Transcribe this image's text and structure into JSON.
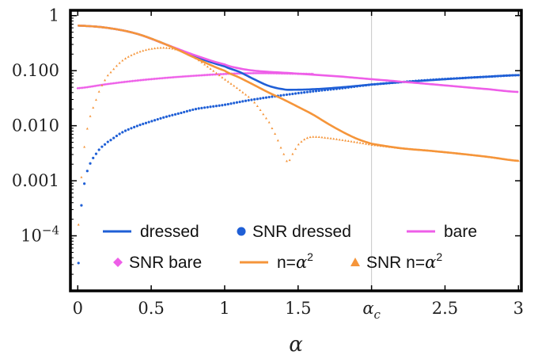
{
  "chart_data": {
    "type": "line",
    "xlabel": "α",
    "ylabel": "",
    "xlim": [
      -0.05,
      3.02
    ],
    "ylim": [
      1e-05,
      1.25
    ],
    "y_scale": "log",
    "x_ticks": [
      {
        "value": 0,
        "label": "0"
      },
      {
        "value": 0.5,
        "label": "0.5"
      },
      {
        "value": 1,
        "label": "1"
      },
      {
        "value": 1.5,
        "label": "1.5"
      },
      {
        "value": 2,
        "label": "α_c",
        "base": "α",
        "sub": "c"
      },
      {
        "value": 2.5,
        "label": "2.5"
      },
      {
        "value": 3,
        "label": "3"
      }
    ],
    "y_ticks": [
      {
        "value": 1,
        "label": "1"
      },
      {
        "value": 0.1,
        "label": "0.100"
      },
      {
        "value": 0.01,
        "label": "0.010"
      },
      {
        "value": 0.001,
        "label": "0.001"
      },
      {
        "value": 0.0001,
        "label": "10⁻⁴",
        "base": "10",
        "sup": "−4"
      }
    ],
    "reference_lines": [
      {
        "x": 2,
        "color": "#c8c8c8"
      }
    ],
    "legend_position": "bottom",
    "series": [
      {
        "name": "dressed",
        "style": "line",
        "color": "#1f5fd6",
        "x": [
          0,
          0.2,
          0.4,
          0.6,
          0.8,
          1.0,
          1.1,
          1.2,
          1.3,
          1.4,
          1.45,
          1.6,
          1.8,
          2.0,
          2.2,
          2.5,
          2.8,
          3.0
        ],
        "y": [
          0.66,
          0.6,
          0.47,
          0.3,
          0.18,
          0.12,
          0.095,
          0.07,
          0.053,
          0.046,
          0.045,
          0.046,
          0.05,
          0.056,
          0.062,
          0.07,
          0.078,
          0.083
        ]
      },
      {
        "name": "SNR dressed",
        "style": "points",
        "marker": "circle",
        "color": "#1f5fd6",
        "x": [
          0.005,
          0.02,
          0.035,
          0.05,
          0.075,
          0.1,
          0.15,
          0.2,
          0.3,
          0.4,
          0.5,
          0.6,
          0.7,
          0.8,
          0.9,
          1.0,
          1.1,
          1.2,
          1.3,
          1.4,
          1.5,
          1.6,
          1.7,
          1.8,
          1.9,
          2.0,
          2.2,
          2.4,
          2.6,
          2.8,
          3.0
        ],
        "y": [
          3.2e-05,
          0.00025,
          0.00055,
          0.0011,
          0.0018,
          0.0025,
          0.0038,
          0.005,
          0.0075,
          0.0098,
          0.012,
          0.0145,
          0.017,
          0.02,
          0.022,
          0.024,
          0.027,
          0.03,
          0.033,
          0.036,
          0.039,
          0.042,
          0.045,
          0.048,
          0.052,
          0.056,
          0.062,
          0.068,
          0.073,
          0.078,
          0.083
        ]
      },
      {
        "name": "bare",
        "style": "line",
        "color": "#ee5ee8",
        "x": [
          0,
          0.2,
          0.4,
          0.6,
          0.8,
          1.0,
          1.1,
          1.2,
          1.3,
          1.5,
          1.8,
          2.0,
          2.2,
          2.5,
          2.8,
          3.0
        ],
        "y": [
          0.66,
          0.6,
          0.47,
          0.3,
          0.19,
          0.13,
          0.11,
          0.1,
          0.095,
          0.088,
          0.078,
          0.07,
          0.063,
          0.054,
          0.046,
          0.041
        ]
      },
      {
        "name": "SNR bare",
        "style": "points",
        "marker": "diamond",
        "color": "#ee5ee8",
        "x": [
          0,
          0.2,
          0.4,
          0.6,
          0.8,
          1.0,
          1.1,
          1.2,
          1.3,
          1.4,
          1.5,
          1.6
        ],
        "y": [
          0.048,
          0.057,
          0.066,
          0.074,
          0.081,
          0.087,
          0.089,
          0.09,
          0.09,
          0.089,
          0.088,
          0.087
        ]
      },
      {
        "name": "n=α²",
        "label_base": "n=α",
        "label_sup": "2",
        "style": "line",
        "color": "#f5953a",
        "x": [
          0,
          0.2,
          0.4,
          0.6,
          0.8,
          1.0,
          1.1,
          1.2,
          1.3,
          1.4,
          1.5,
          1.6,
          1.7,
          1.8,
          1.9,
          2.0,
          2.2,
          2.4,
          2.6,
          2.8,
          3.0
        ],
        "y": [
          0.66,
          0.6,
          0.47,
          0.3,
          0.17,
          0.1,
          0.075,
          0.055,
          0.04,
          0.03,
          0.022,
          0.016,
          0.011,
          0.0078,
          0.0058,
          0.0047,
          0.0039,
          0.0035,
          0.0031,
          0.0027,
          0.0023
        ]
      },
      {
        "name": "SNR n=α²",
        "label_base": "SNR n=α",
        "label_sup": "2",
        "style": "points",
        "marker": "triangle",
        "color": "#f5953a",
        "x": [
          0.005,
          0.02,
          0.04,
          0.06,
          0.08,
          0.1,
          0.15,
          0.2,
          0.3,
          0.4,
          0.5,
          0.6,
          0.7,
          0.8,
          0.9,
          1.0,
          1.1,
          1.2,
          1.3,
          1.35,
          1.4,
          1.43,
          1.46,
          1.5,
          1.55,
          1.6,
          1.7,
          1.8,
          1.9,
          2.0,
          2.2,
          2.4,
          2.6,
          2.8,
          3.0
        ],
        "y": [
          0.00016,
          0.0008,
          0.0032,
          0.0075,
          0.0135,
          0.02,
          0.045,
          0.08,
          0.15,
          0.21,
          0.25,
          0.26,
          0.23,
          0.17,
          0.11,
          0.07,
          0.045,
          0.027,
          0.012,
          0.0065,
          0.0032,
          0.0022,
          0.003,
          0.0045,
          0.0058,
          0.0063,
          0.006,
          0.0055,
          0.005,
          0.0045,
          0.0039,
          0.0035,
          0.0031,
          0.0027,
          0.0023
        ]
      }
    ]
  }
}
